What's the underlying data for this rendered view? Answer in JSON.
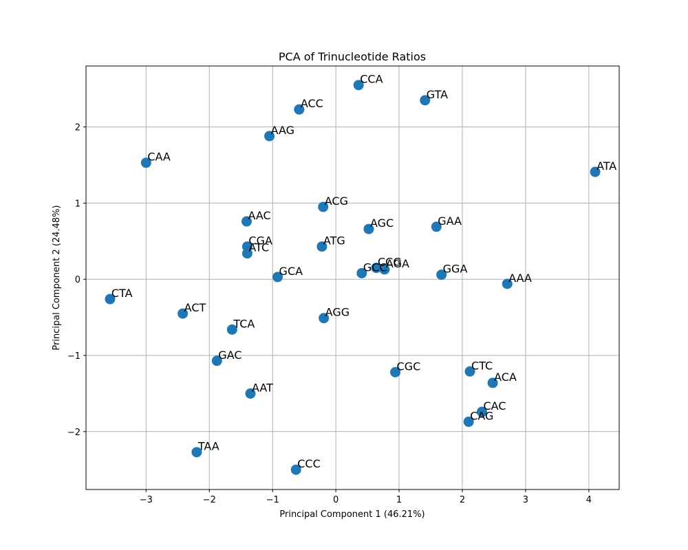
{
  "chart_data": {
    "type": "scatter",
    "title": "PCA of Trinucleotide Ratios",
    "xlabel": "Principal Component 1 (46.21%)",
    "ylabel": "Principal Component 2 (24.48%)",
    "xlim": [
      -3.95,
      4.48
    ],
    "ylim": [
      -2.76,
      2.8
    ],
    "xticks": [
      -3,
      -2,
      -1,
      0,
      1,
      2,
      3,
      4
    ],
    "yticks": [
      -2,
      -1,
      0,
      1,
      2
    ],
    "grid": true,
    "marker_color": "#1f77b4",
    "points": [
      {
        "label": "CCA",
        "x": 0.36,
        "y": 2.55
      },
      {
        "label": "GTA",
        "x": 1.41,
        "y": 2.35
      },
      {
        "label": "ACC",
        "x": -0.58,
        "y": 2.23
      },
      {
        "label": "AAG",
        "x": -1.05,
        "y": 1.88
      },
      {
        "label": "CAA",
        "x": -3.0,
        "y": 1.53
      },
      {
        "label": "ATA",
        "x": 4.1,
        "y": 1.41
      },
      {
        "label": "ACG",
        "x": -0.2,
        "y": 0.95
      },
      {
        "label": "AAC",
        "x": -1.41,
        "y": 0.76
      },
      {
        "label": "AGC",
        "x": 0.52,
        "y": 0.66
      },
      {
        "label": "GAA",
        "x": 1.59,
        "y": 0.69
      },
      {
        "label": "CGA",
        "x": -1.4,
        "y": 0.43
      },
      {
        "label": "ATC",
        "x": -1.4,
        "y": 0.34
      },
      {
        "label": "ATG",
        "x": -0.22,
        "y": 0.43
      },
      {
        "label": "CCG",
        "x": 0.64,
        "y": 0.15
      },
      {
        "label": "AGA",
        "x": 0.77,
        "y": 0.13
      },
      {
        "label": "GCC",
        "x": 0.41,
        "y": 0.08
      },
      {
        "label": "GCA",
        "x": -0.92,
        "y": 0.03
      },
      {
        "label": "GGA",
        "x": 1.67,
        "y": 0.06
      },
      {
        "label": "AAA",
        "x": 2.71,
        "y": -0.06
      },
      {
        "label": "CTA",
        "x": -3.57,
        "y": -0.26
      },
      {
        "label": "ACT",
        "x": -2.42,
        "y": -0.45
      },
      {
        "label": "AGG",
        "x": -0.19,
        "y": -0.51
      },
      {
        "label": "TCA",
        "x": -1.64,
        "y": -0.66
      },
      {
        "label": "GAC",
        "x": -1.88,
        "y": -1.07
      },
      {
        "label": "CGC",
        "x": 0.94,
        "y": -1.22
      },
      {
        "label": "CTC",
        "x": 2.12,
        "y": -1.21
      },
      {
        "label": "ACA",
        "x": 2.48,
        "y": -1.36
      },
      {
        "label": "AAT",
        "x": -1.35,
        "y": -1.5
      },
      {
        "label": "CAC",
        "x": 2.31,
        "y": -1.74
      },
      {
        "label": "CAG",
        "x": 2.1,
        "y": -1.87
      },
      {
        "label": "TAA",
        "x": -2.2,
        "y": -2.27
      },
      {
        "label": "CCC",
        "x": -0.63,
        "y": -2.5
      }
    ]
  }
}
